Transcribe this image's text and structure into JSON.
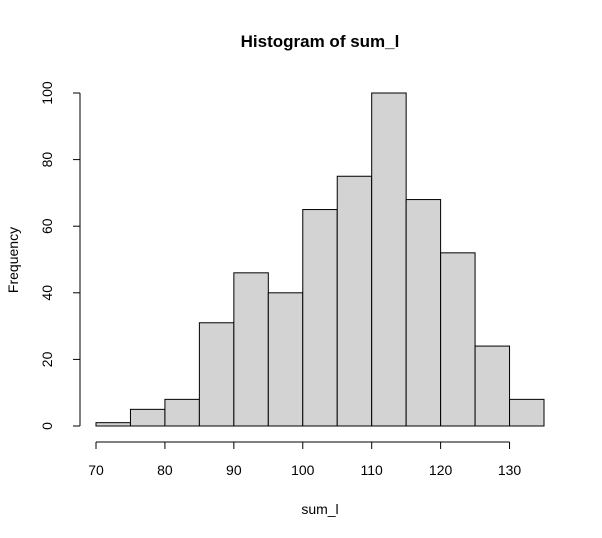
{
  "chart_data": {
    "type": "bar",
    "title": "Histogram of sum_l",
    "xlabel": "sum_l",
    "ylabel": "Frequency",
    "bin_edges": [
      70,
      75,
      80,
      85,
      90,
      95,
      100,
      105,
      110,
      115,
      120,
      125,
      130,
      135
    ],
    "values": [
      1,
      5,
      8,
      31,
      46,
      40,
      65,
      75,
      100,
      68,
      52,
      24,
      8
    ],
    "xlim": [
      70,
      135
    ],
    "ylim": [
      0,
      100
    ],
    "x_ticks": [
      70,
      80,
      90,
      100,
      110,
      120,
      130
    ],
    "y_ticks": [
      0,
      20,
      40,
      60,
      80,
      100
    ],
    "bar_color": "#d3d3d3",
    "grid": false,
    "legend": "none"
  }
}
